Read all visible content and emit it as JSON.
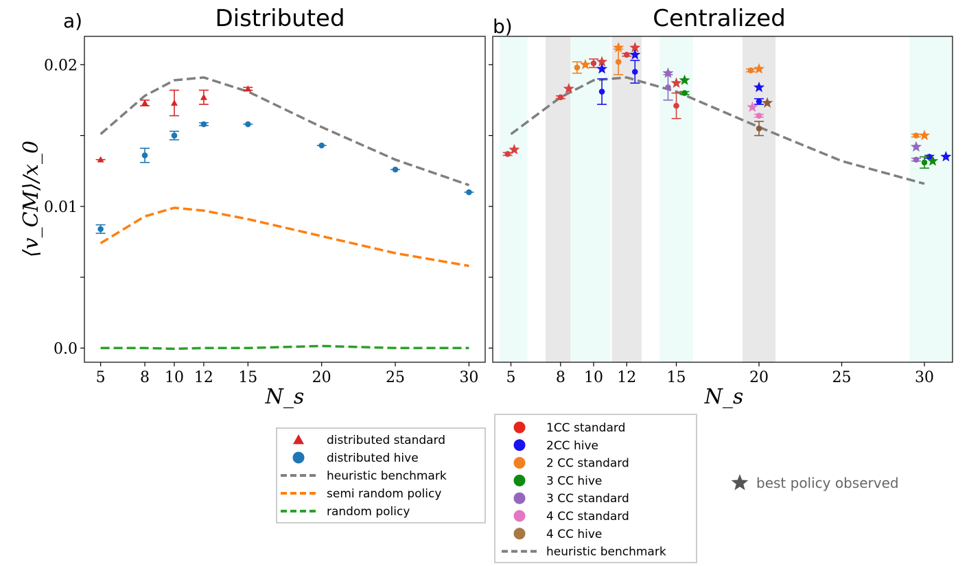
{
  "figure": {
    "panel_a_letter": "a)",
    "panel_b_letter": "b)",
    "panel_a_title": "Distributed",
    "panel_b_title": "Centralized",
    "ylabel": "⟨v_CM⟩/x_0",
    "xlabel": "N_s",
    "best_policy_note": "best policy observed"
  },
  "legend_a": [
    {
      "label": "distributed standard",
      "marker": "triangle",
      "color": "#d62728"
    },
    {
      "label": "distributed hive",
      "marker": "circle",
      "color": "#1f77b4"
    },
    {
      "label": "heuristic benchmark",
      "marker": "dash",
      "color": "#7f7f7f"
    },
    {
      "label": "semi random policy",
      "marker": "dash",
      "color": "#ff7f0e"
    },
    {
      "label": "random policy",
      "marker": "dash",
      "color": "#2ca02c"
    }
  ],
  "legend_b": [
    {
      "label": "1CC standard",
      "marker": "circle",
      "color": "#e8251c"
    },
    {
      "label": "2CC hive",
      "marker": "circle",
      "color": "#1a12f0"
    },
    {
      "label": "2 CC standard",
      "marker": "circle",
      "color": "#f28021"
    },
    {
      "label": "3 CC hive",
      "marker": "circle",
      "color": "#108a10"
    },
    {
      "label": "3 CC standard",
      "marker": "circle",
      "color": "#9467bd"
    },
    {
      "label": "4 CC standard",
      "marker": "circle",
      "color": "#e377c2"
    },
    {
      "label": "4 CC hive",
      "marker": "circle",
      "color": "#a87845"
    },
    {
      "label": "heuristic benchmark",
      "marker": "dash",
      "color": "#7f7f7f"
    }
  ],
  "chart_data": [
    {
      "type": "scatter",
      "title": "Distributed",
      "xlabel": "N_s",
      "ylabel": "⟨v_CM⟩/x_0",
      "xlim": [
        3.9,
        31.1
      ],
      "ylim": [
        -0.001,
        0.022
      ],
      "xticks": [
        5,
        8,
        10,
        12,
        15,
        20,
        25,
        30
      ],
      "xtick_labels": [
        "5",
        "8",
        "10",
        "12",
        "15",
        "20",
        "25",
        "30"
      ],
      "yticks": [
        0.0,
        0.01,
        0.02
      ],
      "ytick_labels": [
        "0.0",
        "0.01",
        "0.02"
      ],
      "lines": [
        {
          "name": "heuristic benchmark",
          "color": "#7f7f7f",
          "x": [
            5,
            8,
            10,
            12,
            15,
            20,
            25,
            30
          ],
          "y": [
            0.0151,
            0.0178,
            0.0189,
            0.0191,
            0.0181,
            0.0156,
            0.0133,
            0.0115
          ]
        },
        {
          "name": "semi random policy",
          "color": "#ff7f0e",
          "x": [
            5,
            8,
            10,
            12,
            15,
            20,
            25,
            30
          ],
          "y": [
            0.0074,
            0.0093,
            0.0099,
            0.0097,
            0.0091,
            0.0079,
            0.0067,
            0.0058
          ]
        },
        {
          "name": "random policy",
          "color": "#2ca02c",
          "x": [
            5,
            8,
            10,
            12,
            15,
            20,
            25,
            30
          ],
          "y": [
            0.0,
            0.0,
            -5e-05,
            0.0,
            0.0,
            0.00015,
            0.0,
            0.0
          ]
        }
      ],
      "points": [
        {
          "series": "distributed standard",
          "color": "#d62728",
          "marker": "triangle",
          "data": [
            {
              "x": 5,
              "y": 0.0133,
              "err": 0.0
            },
            {
              "x": 8,
              "y": 0.0173,
              "err": 0.0002
            },
            {
              "x": 10,
              "y": 0.0173,
              "err": 0.0009
            },
            {
              "x": 12,
              "y": 0.0177,
              "err": 0.0005
            },
            {
              "x": 15,
              "y": 0.0183,
              "err": 0.0001
            }
          ]
        },
        {
          "series": "distributed hive",
          "color": "#1f77b4",
          "marker": "circle",
          "data": [
            {
              "x": 5,
              "y": 0.0084,
              "err": 0.0003
            },
            {
              "x": 8,
              "y": 0.0136,
              "err": 0.0005
            },
            {
              "x": 10,
              "y": 0.015,
              "err": 0.0003
            },
            {
              "x": 12,
              "y": 0.0158,
              "err": 0.0001
            },
            {
              "x": 15,
              "y": 0.0158,
              "err": 0.0
            },
            {
              "x": 20,
              "y": 0.0143,
              "err": 0.0
            },
            {
              "x": 25,
              "y": 0.0126,
              "err": 0.0
            },
            {
              "x": 30,
              "y": 0.011,
              "err": 0.0
            }
          ]
        }
      ]
    },
    {
      "type": "scatter",
      "title": "Centralized",
      "xlabel": "N_s",
      "ylabel": "⟨v_CM⟩/x_0",
      "xlim": [
        3.9,
        31.7
      ],
      "ylim": [
        -0.001,
        0.022
      ],
      "xticks": [
        5,
        8,
        10,
        12,
        15,
        20,
        25,
        30
      ],
      "xtick_labels": [
        "5",
        "8",
        "10",
        "12",
        "15",
        "20",
        "25",
        "30"
      ],
      "bands": [
        {
          "from": 4.3,
          "to": 6.0,
          "color": "#edfcf8"
        },
        {
          "from": 7.1,
          "to": 8.6,
          "color": "#e8e8e8"
        },
        {
          "from": 8.6,
          "to": 11.0,
          "color": "#edfcf8"
        },
        {
          "from": 11.1,
          "to": 12.9,
          "color": "#e8e8e8"
        },
        {
          "from": 14.0,
          "to": 16.0,
          "color": "#edfcf8"
        },
        {
          "from": 19.0,
          "to": 21.0,
          "color": "#e8e8e8"
        },
        {
          "from": 29.1,
          "to": 31.7,
          "color": "#edfcf8"
        }
      ],
      "lines": [
        {
          "name": "heuristic benchmark",
          "color": "#7f7f7f",
          "x": [
            5,
            8,
            10,
            12,
            15,
            20,
            25,
            30
          ],
          "y": [
            0.0151,
            0.0177,
            0.0189,
            0.0191,
            0.0181,
            0.0156,
            0.0132,
            0.0116
          ]
        }
      ],
      "points": [
        {
          "series": "1CC standard",
          "color": "#d84040",
          "data": [
            {
              "x": 4.8,
              "y": 0.0137,
              "err": 0.0001,
              "best": false
            },
            {
              "x": 5.2,
              "y": 0.014,
              "best": true
            },
            {
              "x": 8.0,
              "y": 0.0177,
              "err": 0.0001,
              "best": false
            },
            {
              "x": 8.5,
              "y": 0.0183,
              "best": true
            },
            {
              "x": 10.0,
              "y": 0.0201,
              "err": 0.0003,
              "best": false
            },
            {
              "x": 10.5,
              "y": 0.0202,
              "best": true
            },
            {
              "x": 12.0,
              "y": 0.0207,
              "err": 0.0001,
              "best": false
            },
            {
              "x": 12.5,
              "y": 0.0212,
              "best": true
            },
            {
              "x": 15.0,
              "y": 0.0171,
              "err": 0.0009,
              "best": false
            },
            {
              "x": 15.0,
              "y": 0.0187,
              "best": true
            }
          ]
        },
        {
          "series": "2CC hive",
          "color": "#1a12f0",
          "data": [
            {
              "x": 10.5,
              "y": 0.0181,
              "err": 0.0009,
              "best": false
            },
            {
              "x": 10.5,
              "y": 0.0197,
              "best": true
            },
            {
              "x": 12.5,
              "y": 0.0195,
              "err": 0.0008,
              "best": false
            },
            {
              "x": 12.5,
              "y": 0.0207,
              "best": true
            },
            {
              "x": 20.0,
              "y": 0.0174,
              "err": 0.0002,
              "best": false
            },
            {
              "x": 20.0,
              "y": 0.0184,
              "best": true
            },
            {
              "x": 30.3,
              "y": 0.0135,
              "err": 0.0001,
              "best": false
            },
            {
              "x": 31.3,
              "y": 0.0135,
              "best": true
            }
          ]
        },
        {
          "series": "2 CC standard",
          "color": "#f28021",
          "data": [
            {
              "x": 9.0,
              "y": 0.0198,
              "err": 0.0004,
              "best": false
            },
            {
              "x": 9.5,
              "y": 0.02,
              "best": true
            },
            {
              "x": 11.5,
              "y": 0.0202,
              "err": 0.0009,
              "best": false
            },
            {
              "x": 11.5,
              "y": 0.0212,
              "best": true
            },
            {
              "x": 19.5,
              "y": 0.0196,
              "err": 0.0001,
              "best": false
            },
            {
              "x": 20.0,
              "y": 0.0197,
              "best": true
            },
            {
              "x": 29.5,
              "y": 0.015,
              "err": 0.0001,
              "best": false
            },
            {
              "x": 30.0,
              "y": 0.015,
              "best": true
            }
          ]
        },
        {
          "series": "3 CC hive",
          "color": "#108a10",
          "data": [
            {
              "x": 15.5,
              "y": 0.018,
              "err": 0.0001,
              "best": false
            },
            {
              "x": 15.5,
              "y": 0.0189,
              "best": true
            },
            {
              "x": 30.0,
              "y": 0.0131,
              "err": 0.0004,
              "best": false
            },
            {
              "x": 30.5,
              "y": 0.0132,
              "best": true
            }
          ]
        },
        {
          "series": "3 CC standard",
          "color": "#9467bd",
          "data": [
            {
              "x": 14.5,
              "y": 0.0184,
              "err": 0.0009,
              "best": false
            },
            {
              "x": 14.5,
              "y": 0.0194,
              "best": true
            },
            {
              "x": 29.5,
              "y": 0.0133,
              "err": 0.0001,
              "best": false
            },
            {
              "x": 29.5,
              "y": 0.0142,
              "best": true
            }
          ]
        },
        {
          "series": "4 CC standard",
          "color": "#e377c2",
          "data": [
            {
              "x": 20.0,
              "y": 0.0164,
              "err": 0.0001,
              "best": false
            },
            {
              "x": 19.6,
              "y": 0.017,
              "best": true
            }
          ]
        },
        {
          "series": "4 CC hive",
          "color": "#8c5a3c",
          "data": [
            {
              "x": 20.0,
              "y": 0.0155,
              "err": 0.0005,
              "best": false
            },
            {
              "x": 20.5,
              "y": 0.0173,
              "best": true
            }
          ]
        }
      ]
    }
  ]
}
